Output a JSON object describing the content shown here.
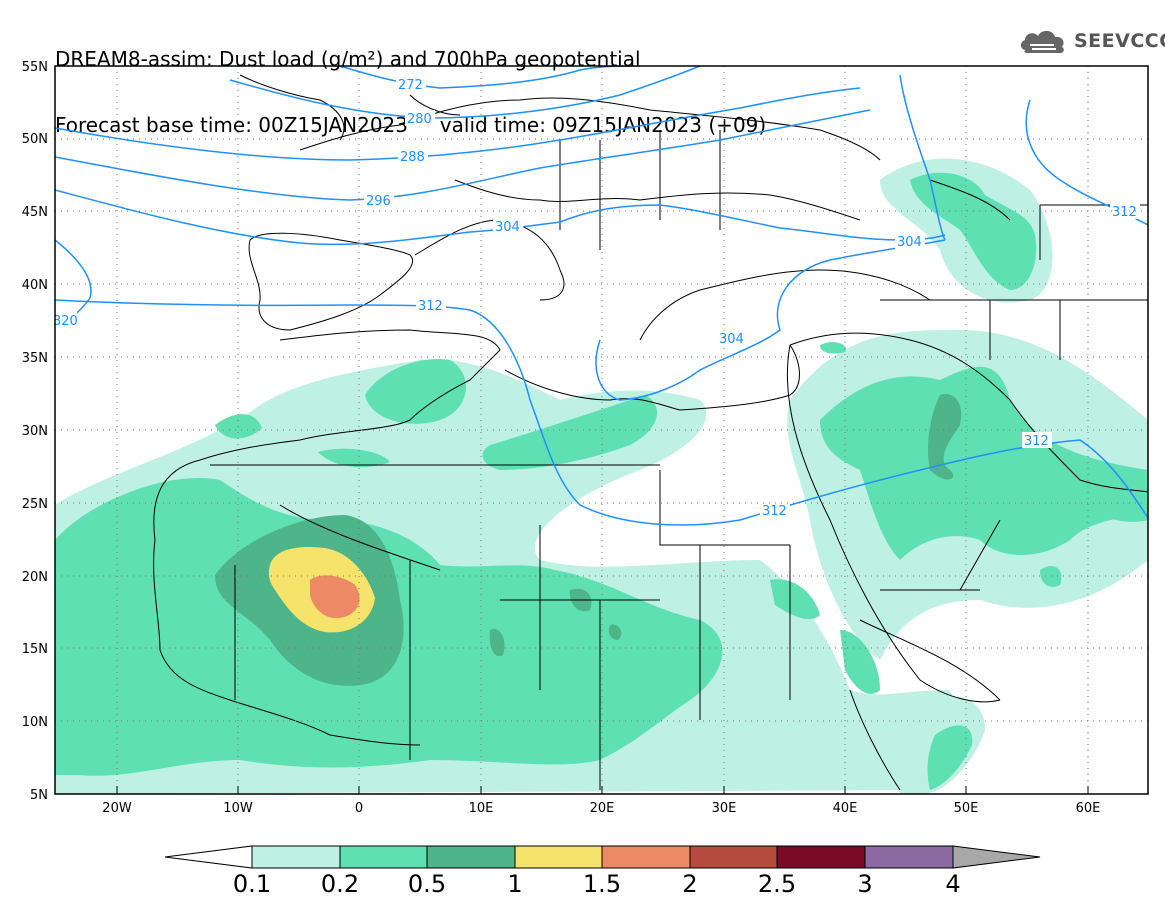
{
  "title": {
    "line1": "DREAM8-assim: Dust load (g/m²) and 700hPa geopotential",
    "line2_base": "Forecast base time: 00Z15JAN2023",
    "line2_valid": "valid time: 09Z15JAN2023 (+09)"
  },
  "logo": {
    "text": "SEEVCCC",
    "icon": "cloud-icon"
  },
  "map": {
    "lat_ticks": [
      "55N",
      "50N",
      "45N",
      "40N",
      "35N",
      "30N",
      "25N",
      "20N",
      "15N",
      "10N",
      "5N"
    ],
    "lon_ticks": [
      "20W",
      "10W",
      "0",
      "10E",
      "20E",
      "30E",
      "40E",
      "50E",
      "60E"
    ],
    "contour_labels": [
      "272",
      "280",
      "288",
      "296",
      "304",
      "312",
      "320",
      "304",
      "304",
      "312",
      "312",
      "312"
    ],
    "colors": {
      "contour": "#1e90ff",
      "land_outline": "#000000"
    }
  },
  "colorbar": {
    "labels": [
      "0.1",
      "0.2",
      "0.5",
      "1",
      "1.5",
      "2",
      "2.5",
      "3",
      "4"
    ],
    "colors": [
      "#bff0e4",
      "#5ee0b2",
      "#4eb48a",
      "#f5e36b",
      "#ec8a66",
      "#b54c3e",
      "#7a0a26",
      "#8a6aa0",
      "#a8a8a8"
    ]
  }
}
